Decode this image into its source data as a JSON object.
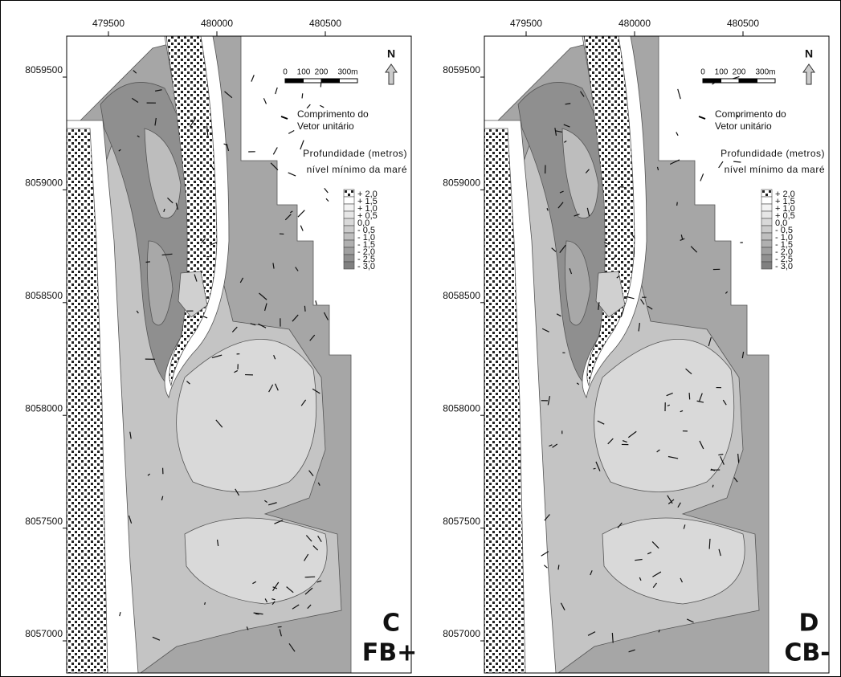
{
  "panels": [
    {
      "x_ticks": [
        "479500",
        "480000",
        "480500"
      ],
      "y_ticks": [
        "8059500",
        "8059000",
        "8058500",
        "8058000",
        "8057500",
        "8057000"
      ],
      "scale_bar": [
        "0",
        "100",
        "200",
        "300m"
      ],
      "north": "N",
      "vector_legend": [
        "Comprimento do",
        "Vetor unitário"
      ],
      "depth_title": [
        "Profundidade (metros)",
        "nível mínimo da maré"
      ],
      "depth_classes": [
        "+ 2,0",
        "+ 1,5",
        "+ 1,0",
        "+ 0,5",
        "0,0",
        "- 0,5",
        "- 1,0",
        "- 1,5",
        "- 2,0",
        "- 2,5",
        "- 3,0"
      ],
      "label": "C",
      "scenario": "FB+"
    },
    {
      "x_ticks": [
        "479500",
        "480000",
        "480500"
      ],
      "y_ticks": [
        "8059500",
        "8059000",
        "8058500",
        "8058000",
        "8057500",
        "8057000"
      ],
      "scale_bar": [
        "0",
        "100",
        "200",
        "300m"
      ],
      "north": "N",
      "vector_legend": [
        "Comprimento do",
        "Vetor unitário"
      ],
      "depth_title": [
        "Profundidade (metros)",
        "nível mínimo da maré"
      ],
      "depth_classes": [
        "+ 2,0",
        "+ 1,5",
        "+ 1,0",
        "+ 0,5",
        "0,0",
        "- 0,5",
        "- 1,0",
        "- 1,5",
        "- 2,0",
        "- 2,5",
        "- 3,0"
      ],
      "label": "D",
      "scenario": "CB-"
    }
  ]
}
